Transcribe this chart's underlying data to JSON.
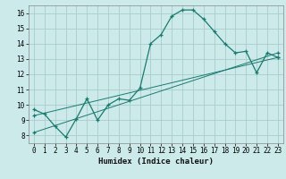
{
  "xlabel": "Humidex (Indice chaleur)",
  "bg_color": "#cceaea",
  "grid_color": "#aacccc",
  "line_color": "#1a7a6e",
  "xlim": [
    -0.5,
    23.5
  ],
  "ylim": [
    7.5,
    16.5
  ],
  "xticks": [
    0,
    1,
    2,
    3,
    4,
    5,
    6,
    7,
    8,
    9,
    10,
    11,
    12,
    13,
    14,
    15,
    16,
    17,
    18,
    19,
    20,
    21,
    22,
    23
  ],
  "yticks": [
    8,
    9,
    10,
    11,
    12,
    13,
    14,
    15,
    16
  ],
  "line1_x": [
    0,
    1,
    2,
    3,
    4,
    5,
    6,
    7,
    8,
    9,
    10,
    11,
    12,
    13,
    14,
    15,
    16,
    17,
    18,
    19,
    20,
    21,
    22,
    23
  ],
  "line1_y": [
    9.7,
    9.4,
    8.6,
    7.9,
    9.1,
    10.4,
    9.0,
    10.0,
    10.4,
    10.3,
    11.1,
    14.0,
    14.6,
    15.8,
    16.2,
    16.2,
    15.6,
    14.8,
    14.0,
    13.4,
    13.5,
    12.1,
    13.4,
    13.1
  ],
  "line2_x": [
    0,
    23
  ],
  "line2_y": [
    9.3,
    13.1
  ],
  "line3_x": [
    0,
    23
  ],
  "line3_y": [
    8.2,
    13.4
  ]
}
